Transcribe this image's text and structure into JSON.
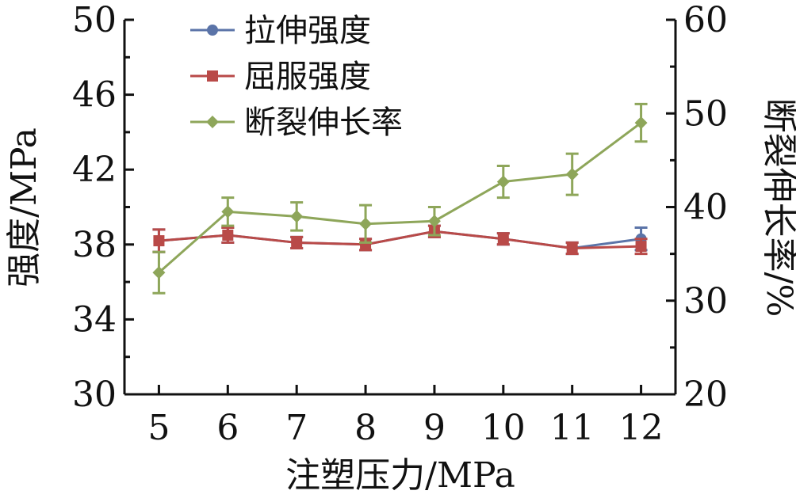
{
  "chart_data": {
    "type": "line",
    "xlabel": "注塑压力/MPa",
    "ylabel_left": "强度/MPa",
    "ylabel_right": "断裂伸长率/%",
    "x": [
      5,
      6,
      7,
      8,
      9,
      10,
      11,
      12
    ],
    "xlim": [
      5,
      12
    ],
    "ylim_left": [
      30,
      50
    ],
    "ylim_right": [
      20,
      60
    ],
    "yticks_left": [
      30,
      34,
      38,
      42,
      46,
      50
    ],
    "yticks_right": [
      20,
      30,
      40,
      50,
      60
    ],
    "grid": false,
    "legend_position": "top-left",
    "series": [
      {
        "name": "拉伸强度",
        "axis": "left",
        "marker": "circle",
        "color": "#5b74a8",
        "values": [
          38.2,
          38.5,
          38.1,
          38.0,
          38.7,
          38.3,
          37.8,
          38.3
        ],
        "error": [
          0.6,
          0.4,
          0.3,
          0.3,
          0.3,
          0.3,
          0.3,
          0.6
        ]
      },
      {
        "name": "屈服强度",
        "axis": "left",
        "marker": "square",
        "color": "#b94a48",
        "values": [
          38.2,
          38.5,
          38.1,
          38.0,
          38.7,
          38.3,
          37.8,
          37.9
        ],
        "error": [
          0.6,
          0.4,
          0.3,
          0.3,
          0.3,
          0.3,
          0.3,
          0.4
        ]
      },
      {
        "name": "断裂伸长率",
        "axis": "right",
        "marker": "diamond",
        "color": "#8ea65a",
        "values": [
          33.0,
          39.5,
          39.0,
          38.2,
          38.5,
          42.7,
          43.5,
          49.0
        ],
        "error": [
          2.2,
          1.5,
          1.5,
          2.0,
          1.5,
          1.7,
          2.2,
          2.0
        ]
      }
    ]
  }
}
